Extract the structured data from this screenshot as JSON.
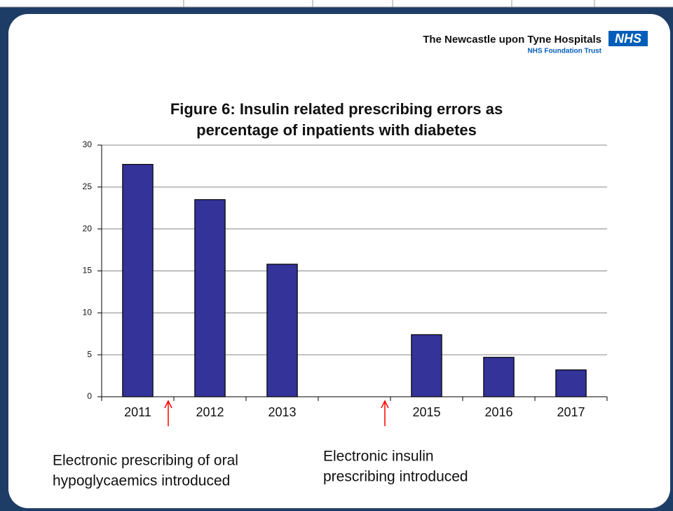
{
  "header": {
    "org": "The Newcastle upon Tyne Hospitals",
    "badge": "NHS",
    "trust": "NHS Foundation Trust"
  },
  "chart_data": {
    "type": "bar",
    "title": [
      "Figure 6: Insulin related prescribing errors as",
      "percentage of inpatients with diabetes"
    ],
    "categories": [
      "2011",
      "2012",
      "2013",
      null,
      "2015",
      "2016",
      "2017"
    ],
    "values": [
      27.7,
      23.5,
      15.8,
      null,
      7.4,
      4.7,
      3.2
    ],
    "color": "#333399",
    "ylim": [
      0,
      30
    ],
    "yticks": [
      0,
      5,
      10,
      15,
      20,
      25,
      30
    ],
    "grid": true,
    "annotations": [
      {
        "lines": [
          "Electronic prescribing of oral",
          "hypoglycaemics introduced"
        ],
        "color": "#ff0000"
      },
      {
        "lines": [
          "Electronic insulin",
          "prescribing  introduced"
        ],
        "color": "#ff0000"
      }
    ]
  }
}
